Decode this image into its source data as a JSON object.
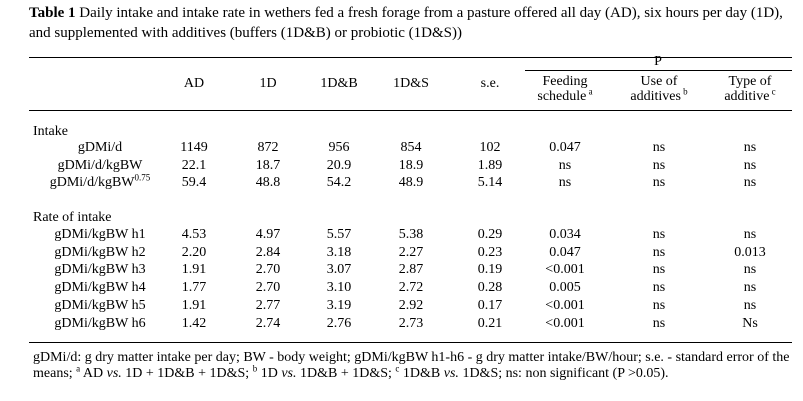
{
  "caption": {
    "label": "Table 1",
    "text": " Daily intake and intake rate in wethers fed a fresh forage from a pasture offered all day (AD), six hours per day (1D), and supplemented with additives (buffers (1D&B) or probiotic (1D&S))"
  },
  "header": {
    "group_label": "P",
    "columns": [
      "AD",
      "1D",
      "1D&B",
      "1D&S",
      "s.e."
    ],
    "p_columns": [
      {
        "line1": "Feeding",
        "line2": "schedule",
        "sup": "a"
      },
      {
        "line1": "Use of",
        "line2": "additives",
        "sup": "b"
      },
      {
        "line1": "Type of",
        "line2": "additive",
        "sup": "c"
      }
    ]
  },
  "sections": [
    {
      "title": "Intake",
      "rows": [
        {
          "label": "gDMi/d",
          "label_sup": "",
          "values": [
            "1149",
            "872",
            "956",
            "854",
            "102",
            "0.047",
            "ns",
            "ns"
          ]
        },
        {
          "label": "gDMi/d/kgBW",
          "label_sup": "",
          "values": [
            "22.1",
            "18.7",
            "20.9",
            "18.9",
            "1.89",
            "ns",
            "ns",
            "ns"
          ]
        },
        {
          "label": "gDMi/d/kgBW",
          "label_sup": "0.75",
          "values": [
            "59.4",
            "48.8",
            "54.2",
            "48.9",
            "5.14",
            "ns",
            "ns",
            "ns"
          ]
        }
      ]
    },
    {
      "title": "Rate of intake",
      "rows": [
        {
          "label": "gDMi/kgBW h1",
          "label_sup": "",
          "values": [
            "4.53",
            "4.97",
            "5.57",
            "5.38",
            "0.29",
            "0.034",
            "ns",
            "ns"
          ]
        },
        {
          "label": "gDMi/kgBW h2",
          "label_sup": "",
          "values": [
            "2.20",
            "2.84",
            "3.18",
            "2.27",
            "0.23",
            "0.047",
            "ns",
            "0.013"
          ]
        },
        {
          "label": "gDMi/kgBW h3",
          "label_sup": "",
          "values": [
            "1.91",
            "2.70",
            "3.07",
            "2.87",
            "0.19",
            "<0.001",
            "ns",
            "ns"
          ]
        },
        {
          "label": "gDMi/kgBW h4",
          "label_sup": "",
          "values": [
            "1.77",
            "2.70",
            "3.10",
            "2.72",
            "0.28",
            "0.005",
            "ns",
            "ns"
          ]
        },
        {
          "label": "gDMi/kgBW h5",
          "label_sup": "",
          "values": [
            "1.91",
            "2.77",
            "3.19",
            "2.92",
            "0.17",
            "<0.001",
            "ns",
            "ns"
          ]
        },
        {
          "label": "gDMi/kgBW h6",
          "label_sup": "",
          "values": [
            "1.42",
            "2.74",
            "2.76",
            "2.73",
            "0.21",
            "<0.001",
            "ns",
            "Ns"
          ]
        }
      ]
    }
  ],
  "footnote": {
    "p1": "gDMi/d: g dry matter intake per day; BW - body weight; gDMi/kgBW h1-h6 - g dry matter intake/BW/hour; s.e. - standard error of the means; ",
    "a_sup": "a",
    "a_text1": " AD ",
    "vs": "vs.",
    "a_text2": " 1D + 1D&B + 1D&S; ",
    "b_sup": "b",
    "b_text1": " 1D ",
    "b_text2": " 1D&B + 1D&S; ",
    "c_sup": "c",
    "c_text1": " 1D&B ",
    "c_text2": " 1D&S; ns: non significant (P >0.05)."
  }
}
